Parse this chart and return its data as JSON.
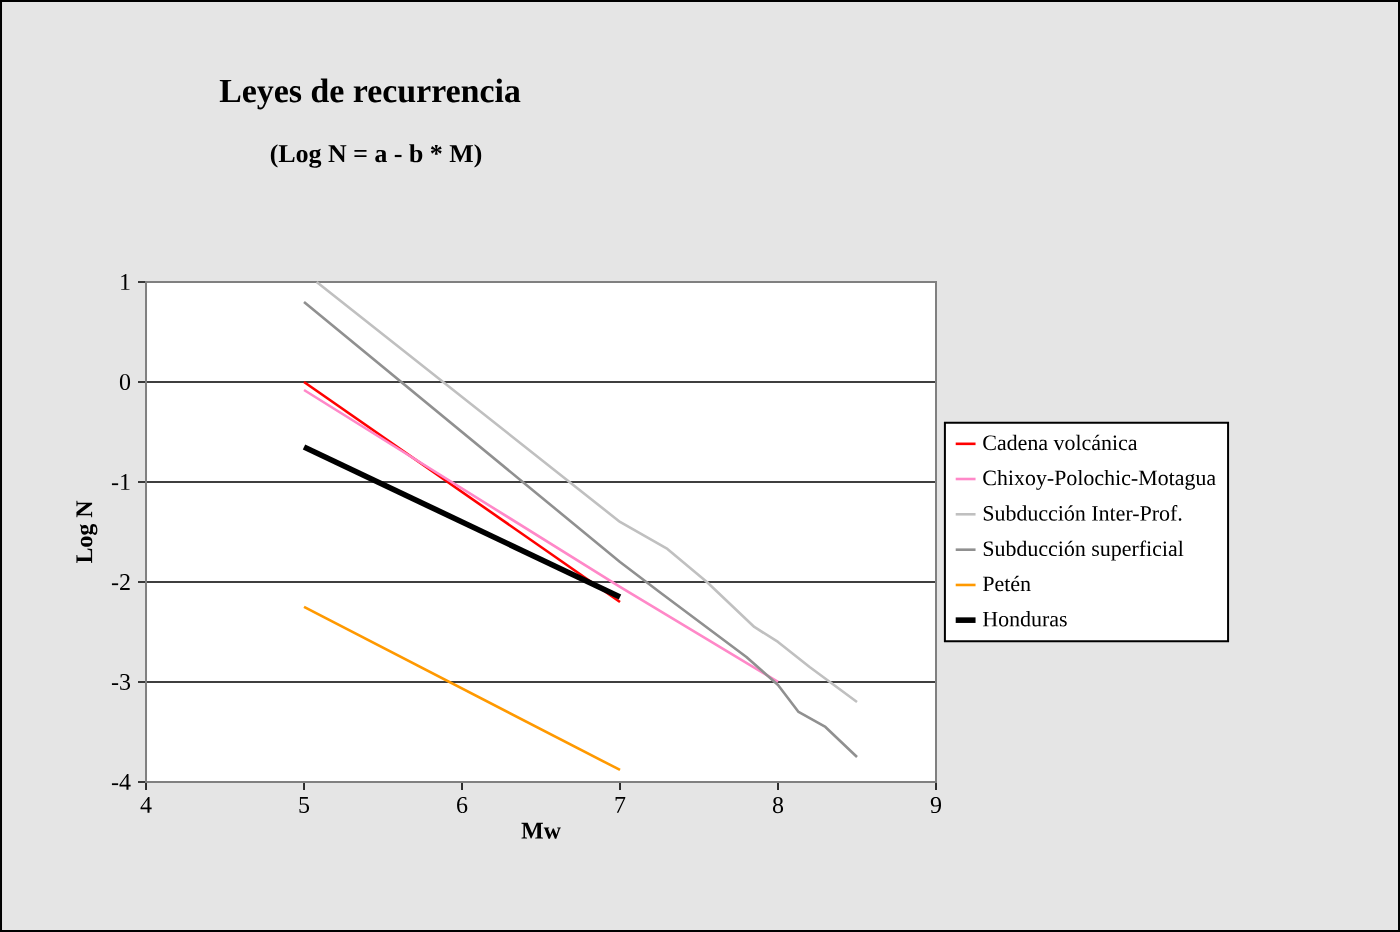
{
  "chart_data": {
    "type": "line",
    "title": "Leyes de recurrencia",
    "subtitle": "(Log N = a - b * M)",
    "xlabel": "Mw",
    "ylabel": "Log N",
    "xlim": [
      4,
      9
    ],
    "xticks": [
      4,
      5,
      6,
      7,
      8,
      9
    ],
    "ylim": [
      -4,
      1
    ],
    "yticks": [
      -4,
      -3,
      -2,
      -1,
      0,
      1
    ],
    "grid": "y",
    "legend": "right",
    "marker": "none",
    "line_style": "solid",
    "series": [
      {
        "name": "Cadena volcánica",
        "color": "#ff0000",
        "x": [
          5,
          7
        ],
        "values": [
          0,
          -2.2
        ]
      },
      {
        "name": "Chixoy-Polochic-Motagua",
        "color": "#ff88c8",
        "x": [
          5,
          7,
          8
        ],
        "values": [
          -0.08,
          -2.05,
          -3.0
        ]
      },
      {
        "name": "Subducción Inter-Prof.",
        "color": "#c0c0c0",
        "x": [
          5.08,
          7.0,
          7.3,
          7.55,
          7.85,
          8.0,
          8.2,
          8.5
        ],
        "values": [
          1.0,
          -1.4,
          -1.67,
          -2.0,
          -2.45,
          -2.6,
          -2.85,
          -3.2
        ]
      },
      {
        "name": "Subducción superficial",
        "color": "#909090",
        "x": [
          5,
          7,
          7.25,
          7.8,
          8.0,
          8.13,
          8.3,
          8.5
        ],
        "values": [
          0.8,
          -1.8,
          -2.1,
          -2.75,
          -3.03,
          -3.3,
          -3.45,
          -3.75
        ]
      },
      {
        "name": "Petén",
        "color": "#ff9900",
        "x": [
          5,
          7
        ],
        "values": [
          -2.25,
          -3.88
        ]
      },
      {
        "name": "Honduras",
        "color": "#000000",
        "x": [
          5,
          7
        ],
        "values": [
          -0.65,
          -2.15
        ]
      }
    ]
  }
}
